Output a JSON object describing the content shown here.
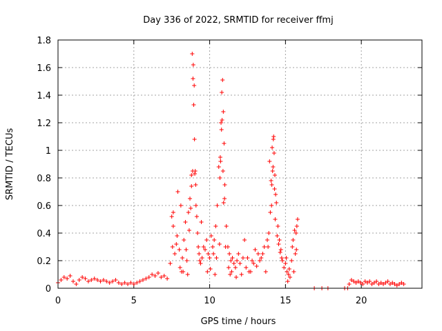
{
  "chart_data": {
    "type": "scatter",
    "title": "Day 336 of 2022, SRMTID for receiver ffmj",
    "xlabel": "GPS time / hours",
    "ylabel": "SRMTID / TECUs",
    "xlim": [
      0,
      24
    ],
    "ylim": [
      0,
      1.8
    ],
    "x_ticks": [
      0,
      5,
      10,
      15,
      20
    ],
    "x_tick_labels": [
      "0",
      "5",
      "10",
      "15",
      "20"
    ],
    "y_ticks": [
      0,
      0.2,
      0.4,
      0.6,
      0.8,
      1.0,
      1.2,
      1.4,
      1.6,
      1.8
    ],
    "y_tick_labels": [
      "0",
      "0.2",
      "0.4",
      "0.6",
      "0.8",
      "1",
      "1.2",
      "1.4",
      "1.6",
      "1.8"
    ],
    "grid": true,
    "marker": "+",
    "color": "#ff0000",
    "series": [
      {
        "name": "SRMTID",
        "x": [
          0.0,
          0.2,
          0.4,
          0.6,
          0.8,
          1.0,
          1.2,
          1.4,
          1.6,
          1.8,
          2.0,
          2.2,
          2.4,
          2.6,
          2.8,
          3.0,
          3.2,
          3.4,
          3.6,
          3.8,
          4.0,
          4.2,
          4.4,
          4.6,
          4.8,
          5.0,
          5.2,
          5.4,
          5.6,
          5.8,
          6.0,
          6.2,
          6.4,
          6.6,
          6.8,
          7.0,
          7.2,
          7.4,
          7.5,
          7.6,
          7.7,
          7.8,
          7.9,
          8.0,
          8.1,
          8.2,
          8.3,
          8.4,
          8.5,
          8.6,
          8.7,
          8.8,
          8.85,
          8.9,
          8.95,
          9.0,
          9.05,
          9.1,
          9.2,
          9.3,
          9.4,
          9.5,
          9.6,
          9.7,
          9.8,
          9.9,
          10.0,
          10.1,
          10.2,
          10.3,
          10.4,
          10.5,
          10.6,
          10.7,
          10.75,
          10.8,
          10.85,
          10.9,
          10.95,
          11.0,
          11.1,
          11.2,
          11.3,
          11.4,
          11.5,
          11.6,
          11.7,
          11.8,
          11.9,
          12.0,
          12.2,
          12.4,
          12.6,
          12.8,
          13.0,
          13.2,
          13.4,
          13.6,
          13.8,
          13.9,
          14.0,
          14.1,
          14.15,
          14.2,
          14.25,
          14.3,
          14.4,
          14.5,
          14.6,
          14.7,
          14.8,
          14.9,
          15.0,
          15.1,
          15.2,
          15.3,
          15.4,
          15.5,
          15.6,
          15.7,
          15.8,
          7.55,
          7.85,
          8.05,
          8.25,
          8.45,
          8.65,
          8.75,
          8.8,
          8.92,
          8.98,
          9.02,
          9.15,
          9.25,
          9.35,
          10.05,
          10.25,
          10.45,
          10.65,
          10.72,
          10.78,
          10.82,
          10.88,
          10.92,
          11.05,
          11.25,
          11.45,
          12.1,
          12.5,
          12.9,
          13.3,
          13.7,
          13.95,
          14.05,
          14.12,
          14.18,
          14.22,
          14.28,
          14.35,
          14.45,
          14.55,
          14.65,
          15.05,
          15.25,
          15.45,
          15.65,
          15.75,
          7.6,
          8.15,
          8.55,
          8.88,
          9.08,
          9.45,
          9.85,
          10.35,
          10.68,
          10.98,
          11.35,
          11.75,
          12.3,
          12.7,
          13.1,
          13.5,
          13.85,
          14.08,
          14.32,
          14.75,
          15.15,
          15.55,
          15.72,
          16.9,
          17.4,
          17.8,
          18.9,
          19.1,
          19.2,
          19.35,
          19.5,
          19.65,
          19.8,
          19.95,
          20.1,
          20.25,
          20.4,
          20.55,
          20.7,
          20.85,
          21.0,
          21.15,
          21.3,
          21.45,
          21.6,
          21.75,
          21.9,
          22.05,
          22.2,
          22.35,
          22.5,
          22.65,
          22.8
        ],
        "y": [
          0.04,
          0.06,
          0.08,
          0.07,
          0.09,
          0.05,
          0.03,
          0.06,
          0.08,
          0.07,
          0.05,
          0.06,
          0.07,
          0.06,
          0.05,
          0.06,
          0.05,
          0.04,
          0.05,
          0.06,
          0.04,
          0.03,
          0.04,
          0.03,
          0.04,
          0.03,
          0.04,
          0.05,
          0.06,
          0.07,
          0.08,
          0.1,
          0.09,
          0.11,
          0.08,
          0.09,
          0.07,
          0.18,
          0.52,
          0.45,
          0.25,
          0.32,
          0.7,
          0.28,
          0.6,
          0.22,
          0.35,
          0.48,
          0.2,
          0.55,
          0.65,
          0.82,
          1.7,
          1.52,
          1.33,
          1.08,
          0.85,
          0.6,
          0.4,
          0.25,
          0.18,
          0.22,
          0.3,
          0.28,
          0.35,
          0.25,
          0.22,
          0.38,
          0.3,
          0.35,
          0.45,
          0.6,
          0.88,
          0.95,
          1.2,
          1.42,
          1.51,
          1.28,
          1.05,
          0.75,
          0.45,
          0.3,
          0.25,
          0.2,
          0.22,
          0.18,
          0.15,
          0.2,
          0.25,
          0.18,
          0.22,
          0.15,
          0.12,
          0.2,
          0.28,
          0.25,
          0.22,
          0.3,
          0.35,
          0.4,
          0.55,
          0.75,
          0.85,
          1.08,
          0.98,
          0.82,
          0.62,
          0.45,
          0.35,
          0.28,
          0.2,
          0.15,
          0.18,
          0.12,
          0.1,
          0.08,
          0.2,
          0.35,
          0.42,
          0.4,
          0.5,
          0.3,
          0.38,
          0.15,
          0.12,
          0.28,
          0.42,
          0.58,
          0.74,
          1.62,
          1.47,
          0.83,
          0.52,
          0.3,
          0.2,
          0.14,
          0.25,
          0.22,
          0.32,
          0.92,
          1.15,
          1.22,
          0.85,
          0.62,
          0.3,
          0.15,
          0.12,
          0.1,
          0.22,
          0.18,
          0.2,
          0.12,
          0.92,
          0.78,
          1.02,
          0.88,
          1.1,
          0.72,
          0.68,
          0.38,
          0.32,
          0.26,
          0.22,
          0.14,
          0.3,
          0.25,
          0.45,
          0.55,
          0.12,
          0.1,
          0.85,
          0.75,
          0.48,
          0.12,
          0.1,
          0.8,
          0.65,
          0.1,
          0.08,
          0.35,
          0.12,
          0.16,
          0.25,
          0.3,
          0.6,
          0.5,
          0.22,
          0.05,
          0.12,
          0.28,
          0.0,
          0.0,
          0.0,
          0.0,
          0.0,
          0.03,
          0.06,
          0.05,
          0.04,
          0.05,
          0.04,
          0.03,
          0.05,
          0.04,
          0.05,
          0.03,
          0.04,
          0.05,
          0.03,
          0.04,
          0.03,
          0.04,
          0.05,
          0.03,
          0.04,
          0.03,
          0.02,
          0.03,
          0.04,
          0.03
        ]
      }
    ]
  }
}
